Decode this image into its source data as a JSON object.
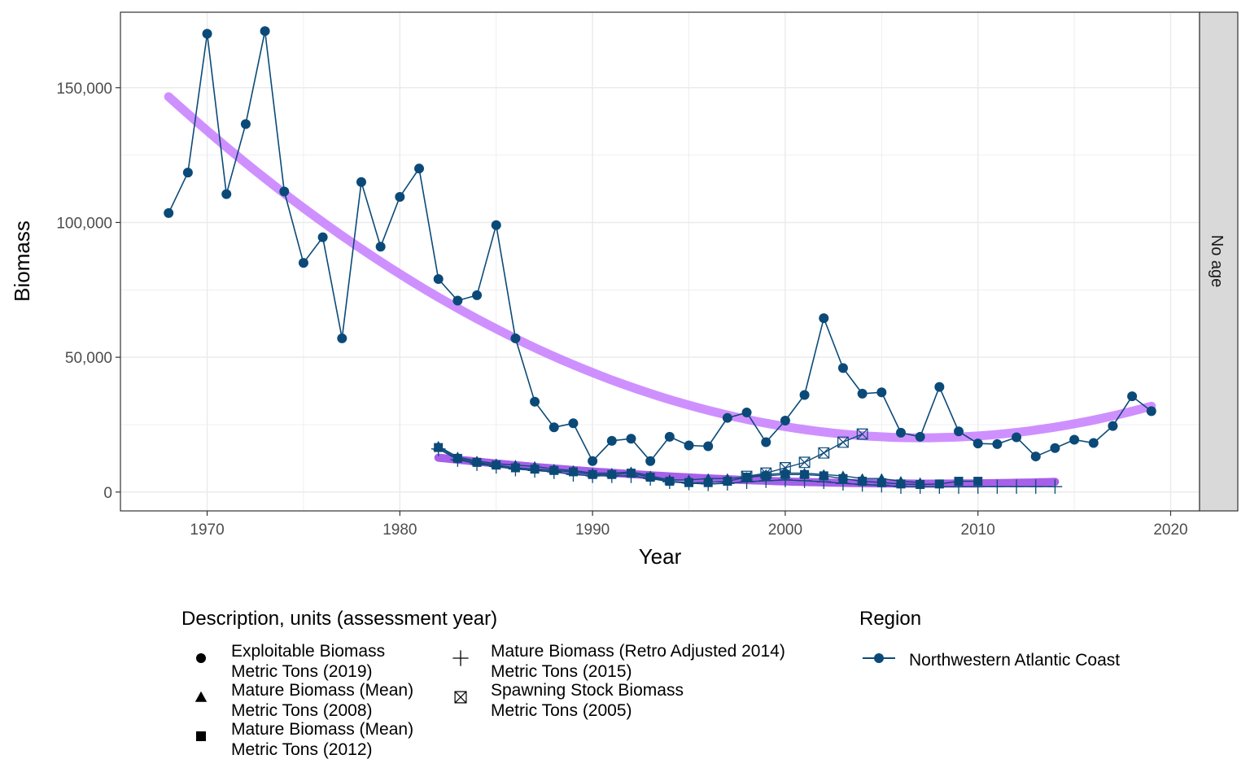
{
  "chart_data": {
    "type": "line",
    "xlabel": "Year",
    "ylabel": "Biomass",
    "xlim": [
      1965.5,
      2021.5
    ],
    "ylim": [
      -7000,
      178000
    ],
    "x_ticks": [
      1970,
      1980,
      1990,
      2000,
      2010,
      2020
    ],
    "x_tick_labels": [
      "1970",
      "1980",
      "1990",
      "2000",
      "2010",
      "2020"
    ],
    "y_ticks": [
      0,
      50000,
      100000,
      150000
    ],
    "y_tick_labels": [
      "0",
      "50,000",
      "100,000",
      "150,000"
    ],
    "facet_label": "No age",
    "colors": {
      "series_line": "#0b4a78",
      "smooth_light": "#c77dff",
      "smooth_dark": "#8a2be2",
      "grid": "#ebebeb",
      "strip": "#d9d9d9"
    },
    "legend": {
      "shape_title": "Description, units (assessment year)",
      "shape_entries": [
        {
          "shape": "circle",
          "line1": "Exploitable Biomass",
          "line2": "Metric Tons (2019)"
        },
        {
          "shape": "triangle",
          "line1": "Mature Biomass (Mean)",
          "line2": "Metric Tons (2008)"
        },
        {
          "shape": "square",
          "line1": "Mature Biomass (Mean)",
          "line2": "Metric Tons (2012)"
        },
        {
          "shape": "plus",
          "line1": "Mature Biomass (Retro Adjusted 2014)",
          "line2": "Metric Tons (2015)"
        },
        {
          "shape": "boxcross",
          "line1": "Spawning Stock Biomass",
          "line2": "Metric Tons (2005)"
        }
      ],
      "region_title": "Region",
      "region_entries": [
        "Northwestern Atlantic Coast"
      ]
    },
    "series": [
      {
        "name": "Exploitable Biomass Metric Tons (2019)",
        "shape": "circle",
        "x": [
          1968,
          1969,
          1970,
          1971,
          1972,
          1973,
          1974,
          1975,
          1976,
          1977,
          1978,
          1979,
          1980,
          1981,
          1982,
          1983,
          1984,
          1985,
          1986,
          1987,
          1988,
          1989,
          1990,
          1991,
          1992,
          1993,
          1994,
          1995,
          1996,
          1997,
          1998,
          1999,
          2000,
          2001,
          2002,
          2003,
          2004,
          2005,
          2006,
          2007,
          2008,
          2009,
          2010,
          2011,
          2012,
          2013,
          2014,
          2015,
          2016,
          2017,
          2018,
          2019
        ],
        "y": [
          103500,
          118500,
          170000,
          110500,
          136500,
          171000,
          111500,
          85000,
          94500,
          57000,
          115000,
          91000,
          109500,
          120000,
          79000,
          71000,
          73000,
          99000,
          57000,
          33500,
          24000,
          25500,
          11500,
          19000,
          19800,
          11500,
          20500,
          17300,
          17000,
          27500,
          29500,
          18500,
          26500,
          36000,
          64500,
          46000,
          36500,
          37000,
          22000,
          20500,
          39000,
          22500,
          18000,
          17800,
          20300,
          13200,
          16300,
          19400,
          18200,
          24500,
          35500,
          30000
        ]
      },
      {
        "name": "Mature Biomass (Mean) Metric Tons (2008)",
        "shape": "triangle",
        "x": [
          1982,
          1983,
          1984,
          1985,
          1986,
          1987,
          1988,
          1989,
          1990,
          1991,
          1992,
          1993,
          1994,
          1995,
          1996,
          1997,
          1998,
          1999,
          2000,
          2001,
          2002,
          2003,
          2004,
          2005,
          2006,
          2007
        ],
        "y": [
          17000,
          13000,
          11500,
          10500,
          10000,
          9500,
          8500,
          8000,
          7000,
          7000,
          7500,
          6000,
          4500,
          4500,
          5000,
          5000,
          5500,
          6500,
          7000,
          7000,
          6500,
          6000,
          5000,
          5000,
          4000,
          3500
        ]
      },
      {
        "name": "Mature Biomass (Mean) Metric Tons (2012)",
        "shape": "square",
        "x": [
          1982,
          1983,
          1984,
          1985,
          1986,
          1987,
          1988,
          1989,
          1990,
          1991,
          1992,
          1993,
          1994,
          1995,
          1996,
          1997,
          1998,
          1999,
          2000,
          2001,
          2002,
          2003,
          2004,
          2005,
          2006,
          2007,
          2008,
          2009,
          2010
        ],
        "y": [
          16500,
          12500,
          11000,
          10000,
          9000,
          8500,
          8000,
          7500,
          6500,
          6500,
          7000,
          5500,
          4000,
          3500,
          3500,
          4000,
          5500,
          6000,
          6500,
          6500,
          6000,
          5000,
          4000,
          3500,
          3000,
          2800,
          3000,
          4000,
          4000
        ]
      },
      {
        "name": "Mature Biomass (Retro Adjusted 2014) Metric Tons (2015)",
        "shape": "plus",
        "x": [
          1982,
          1983,
          1984,
          1985,
          1986,
          1987,
          1988,
          1989,
          1990,
          1991,
          1992,
          1993,
          1994,
          1995,
          1996,
          1997,
          1998,
          1999,
          2000,
          2001,
          2002,
          2003,
          2004,
          2005,
          2006,
          2007,
          2008,
          2009,
          2010,
          2011,
          2012,
          2013,
          2014
        ],
        "y": [
          16000,
          12000,
          10500,
          9500,
          8500,
          8000,
          7500,
          6500,
          6000,
          6000,
          6000,
          5000,
          3800,
          3300,
          3000,
          3200,
          3800,
          4200,
          4500,
          4200,
          3800,
          3200,
          2800,
          2500,
          2000,
          2000,
          2000,
          2000,
          2000,
          2000,
          2000,
          2000,
          2000
        ]
      },
      {
        "name": "Spawning Stock Biomass Metric Tons (2005)",
        "shape": "boxcross",
        "x": [
          1998,
          1999,
          2000,
          2001,
          2002,
          2003,
          2004
        ],
        "y": [
          5800,
          7000,
          9000,
          11000,
          14500,
          18500,
          21500
        ]
      }
    ],
    "smooth_curves": [
      {
        "name": "Exploitable Biomass trend",
        "style": "light",
        "x": [
          1968,
          2019
        ],
        "coef": {
          "center": 2008.5,
          "a": 21500,
          "b": 0,
          "c": 0
        }
      },
      {
        "name": "Mature Biomass trend",
        "style": "dark",
        "x": [
          1982,
          2014
        ],
        "coef": {
          "center": 2009,
          "a": 1200,
          "b": 0,
          "c": 0
        }
      }
    ],
    "region": "Northwestern Atlantic Coast"
  }
}
